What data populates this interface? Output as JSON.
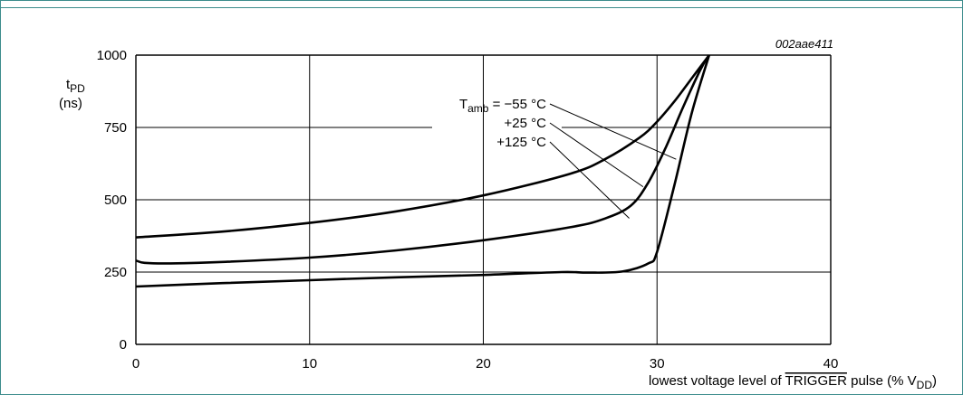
{
  "chart_data": {
    "type": "line",
    "figure_id": "002aae411",
    "ylabel": {
      "main": "t",
      "sub": "PD",
      "unit": "(ns)"
    },
    "xlabel": {
      "prefix": "lowest voltage level of ",
      "overline": "TRIGGER",
      "mid": " pulse (% V",
      "sub": "DD",
      "suffix": ")"
    },
    "xlim": [
      0,
      40
    ],
    "ylim": [
      0,
      1000
    ],
    "x_ticks": [
      0,
      10,
      20,
      30,
      40
    ],
    "y_ticks": [
      0,
      250,
      500,
      750,
      1000
    ],
    "grid": true,
    "series": [
      {
        "name": "Tamb = −55 °C",
        "points": [
          [
            0,
            200
          ],
          [
            5,
            212
          ],
          [
            10,
            222
          ],
          [
            15,
            232
          ],
          [
            20,
            240
          ],
          [
            24.5,
            250
          ],
          [
            26,
            248
          ],
          [
            28,
            252
          ],
          [
            29.5,
            280
          ],
          [
            30,
            320
          ],
          [
            31,
            550
          ],
          [
            32,
            800
          ],
          [
            33,
            1000
          ]
        ]
      },
      {
        "name": "+25 °C",
        "points": [
          [
            0,
            290
          ],
          [
            0.5,
            282
          ],
          [
            2,
            280
          ],
          [
            5,
            285
          ],
          [
            10,
            300
          ],
          [
            15,
            325
          ],
          [
            20,
            360
          ],
          [
            25,
            405
          ],
          [
            27,
            435
          ],
          [
            28.5,
            480
          ],
          [
            29.5,
            560
          ],
          [
            30.5,
            680
          ],
          [
            31.5,
            820
          ],
          [
            32.5,
            950
          ],
          [
            33,
            1000
          ]
        ]
      },
      {
        "name": "+125 °C",
        "points": [
          [
            0,
            370
          ],
          [
            5,
            390
          ],
          [
            10,
            420
          ],
          [
            15,
            460
          ],
          [
            20,
            515
          ],
          [
            25,
            590
          ],
          [
            27,
            640
          ],
          [
            29,
            715
          ],
          [
            30,
            770
          ],
          [
            31,
            840
          ],
          [
            32,
            920
          ],
          [
            33,
            1000
          ]
        ]
      }
    ],
    "annotations": [
      {
        "main": "T",
        "sub": "amb",
        "text": " = −55 °C",
        "series": 0
      },
      {
        "main": "",
        "sub": "",
        "text": "+25 °C",
        "series": 1
      },
      {
        "main": "",
        "sub": "",
        "text": "+125 °C",
        "series": 2
      }
    ]
  }
}
